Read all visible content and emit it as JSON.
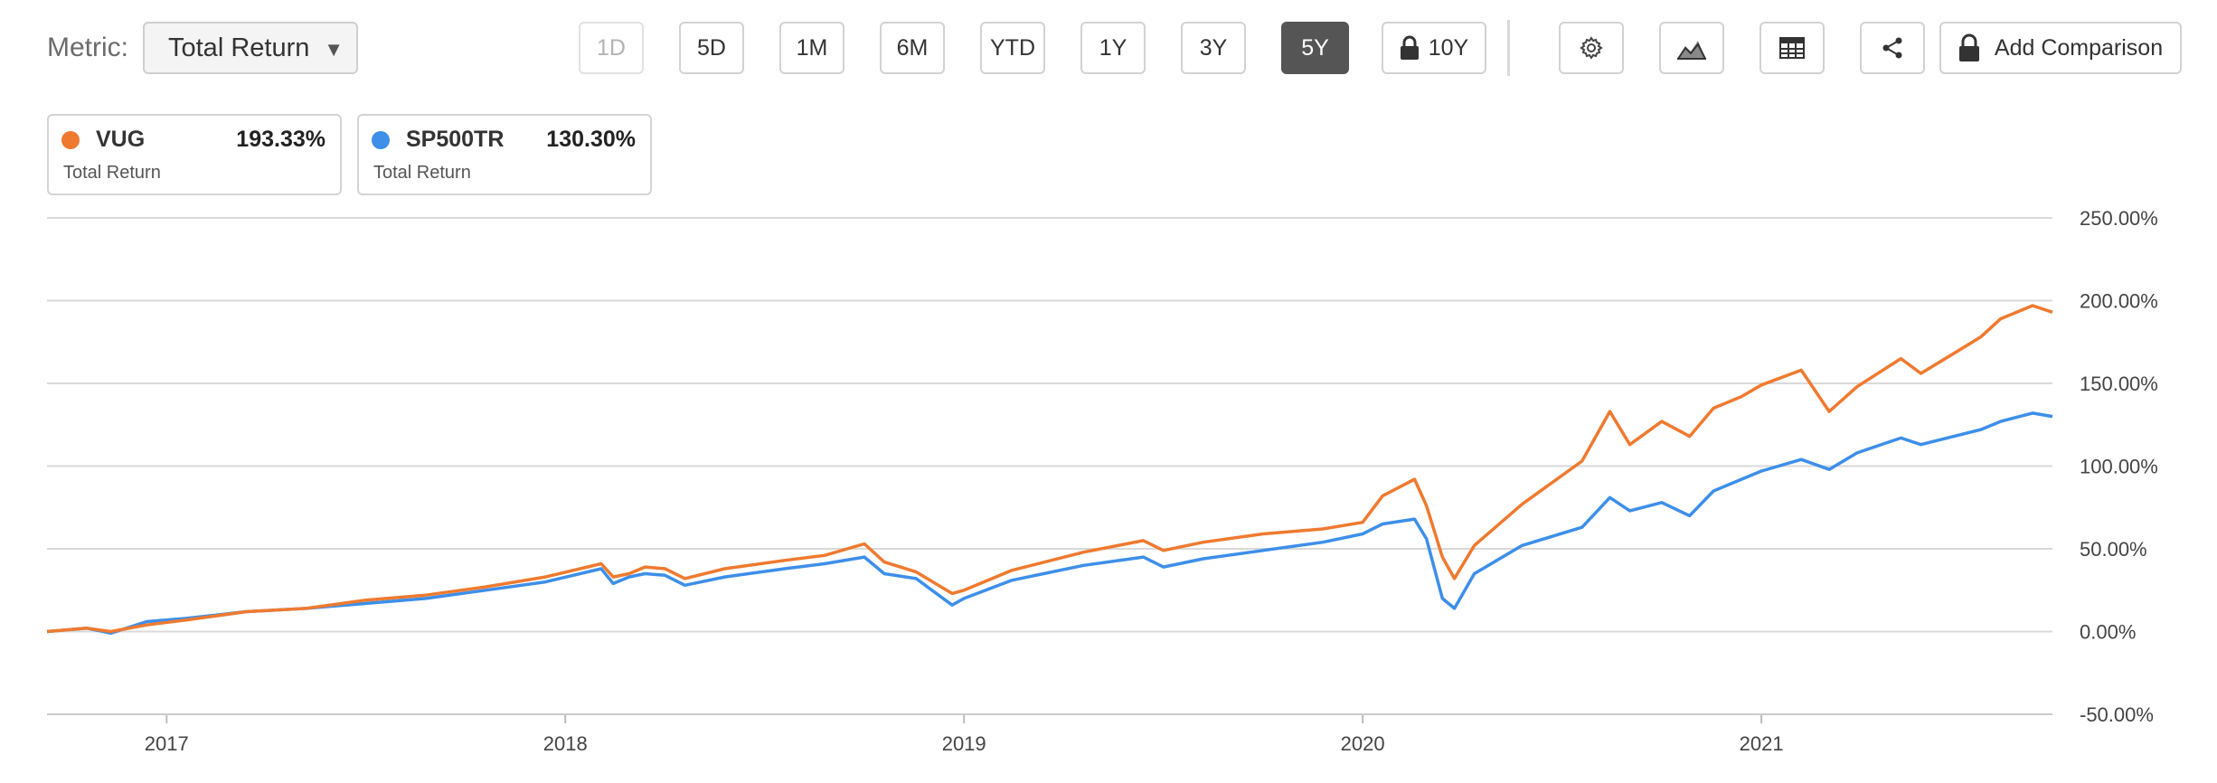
{
  "toolbar": {
    "metric_label": "Metric:",
    "metric_value": "Total Return",
    "ranges": [
      "1D",
      "5D",
      "1M",
      "6M",
      "YTD",
      "1Y",
      "3Y",
      "5Y",
      "10Y"
    ],
    "active_range": "5Y",
    "disabled_range": "1D",
    "locked_range": "10Y",
    "add_comparison_label": "Add Comparison",
    "icons": [
      "gear-icon",
      "chart-type-icon",
      "table-icon",
      "share-icon",
      "lock-icon"
    ]
  },
  "legend": [
    {
      "symbol": "VUG",
      "value": "193.33%",
      "metric": "Total Return",
      "color": "#ef7a2f"
    },
    {
      "symbol": "SP500TR",
      "value": "130.30%",
      "metric": "Total Return",
      "color": "#3d8fe8"
    }
  ],
  "chart_data": {
    "type": "line",
    "y_unit": "%",
    "ylim": [
      -50,
      250
    ],
    "yticks": [
      250,
      200,
      150,
      100,
      50,
      0,
      -50
    ],
    "ytick_labels": [
      "250.00%",
      "200.00%",
      "150.00%",
      "100.00%",
      "50.00%",
      "0.00%",
      "-50.00%"
    ],
    "xlim": [
      2016.7,
      2021.73
    ],
    "xticks": [
      2017,
      2018,
      2019,
      2020,
      2021
    ],
    "xtick_labels": [
      "2017",
      "2018",
      "2019",
      "2020",
      "2021"
    ],
    "grid": "horizontal",
    "series": [
      {
        "name": "VUG",
        "color": "#ef7a2f",
        "points": [
          [
            2016.7,
            0
          ],
          [
            2016.8,
            2
          ],
          [
            2016.86,
            0
          ],
          [
            2016.95,
            4
          ],
          [
            2017.05,
            7
          ],
          [
            2017.2,
            12
          ],
          [
            2017.35,
            14
          ],
          [
            2017.5,
            19
          ],
          [
            2017.65,
            22
          ],
          [
            2017.8,
            27
          ],
          [
            2017.95,
            33
          ],
          [
            2018.09,
            41
          ],
          [
            2018.12,
            33
          ],
          [
            2018.16,
            35
          ],
          [
            2018.2,
            39
          ],
          [
            2018.25,
            38
          ],
          [
            2018.3,
            32
          ],
          [
            2018.4,
            38
          ],
          [
            2018.55,
            43
          ],
          [
            2018.65,
            46
          ],
          [
            2018.75,
            53
          ],
          [
            2018.8,
            42
          ],
          [
            2018.88,
            36
          ],
          [
            2018.97,
            23
          ],
          [
            2019.0,
            25
          ],
          [
            2019.12,
            37
          ],
          [
            2019.3,
            48
          ],
          [
            2019.45,
            55
          ],
          [
            2019.5,
            49
          ],
          [
            2019.6,
            54
          ],
          [
            2019.75,
            59
          ],
          [
            2019.9,
            62
          ],
          [
            2020.0,
            66
          ],
          [
            2020.05,
            82
          ],
          [
            2020.13,
            92
          ],
          [
            2020.16,
            76
          ],
          [
            2020.2,
            45
          ],
          [
            2020.23,
            32
          ],
          [
            2020.28,
            52
          ],
          [
            2020.4,
            77
          ],
          [
            2020.55,
            103
          ],
          [
            2020.62,
            133
          ],
          [
            2020.67,
            113
          ],
          [
            2020.75,
            127
          ],
          [
            2020.82,
            118
          ],
          [
            2020.88,
            135
          ],
          [
            2020.95,
            142
          ],
          [
            2021.0,
            149
          ],
          [
            2021.1,
            158
          ],
          [
            2021.17,
            133
          ],
          [
            2021.24,
            148
          ],
          [
            2021.35,
            165
          ],
          [
            2021.4,
            156
          ],
          [
            2021.55,
            178
          ],
          [
            2021.6,
            189
          ],
          [
            2021.68,
            197
          ],
          [
            2021.73,
            193
          ]
        ]
      },
      {
        "name": "SP500TR",
        "color": "#3d8fe8",
        "points": [
          [
            2016.7,
            0
          ],
          [
            2016.8,
            2
          ],
          [
            2016.86,
            -1
          ],
          [
            2016.95,
            6
          ],
          [
            2017.05,
            8
          ],
          [
            2017.2,
            12
          ],
          [
            2017.35,
            14
          ],
          [
            2017.5,
            17
          ],
          [
            2017.65,
            20
          ],
          [
            2017.8,
            25
          ],
          [
            2017.95,
            30
          ],
          [
            2018.09,
            38
          ],
          [
            2018.12,
            29
          ],
          [
            2018.16,
            33
          ],
          [
            2018.2,
            35
          ],
          [
            2018.25,
            34
          ],
          [
            2018.3,
            28
          ],
          [
            2018.4,
            33
          ],
          [
            2018.55,
            38
          ],
          [
            2018.65,
            41
          ],
          [
            2018.75,
            45
          ],
          [
            2018.8,
            35
          ],
          [
            2018.88,
            32
          ],
          [
            2018.97,
            16
          ],
          [
            2019.0,
            20
          ],
          [
            2019.12,
            31
          ],
          [
            2019.3,
            40
          ],
          [
            2019.45,
            45
          ],
          [
            2019.5,
            39
          ],
          [
            2019.6,
            44
          ],
          [
            2019.75,
            49
          ],
          [
            2019.9,
            54
          ],
          [
            2020.0,
            59
          ],
          [
            2020.05,
            65
          ],
          [
            2020.13,
            68
          ],
          [
            2020.16,
            56
          ],
          [
            2020.2,
            20
          ],
          [
            2020.23,
            14
          ],
          [
            2020.28,
            35
          ],
          [
            2020.4,
            52
          ],
          [
            2020.55,
            63
          ],
          [
            2020.62,
            81
          ],
          [
            2020.67,
            73
          ],
          [
            2020.75,
            78
          ],
          [
            2020.82,
            70
          ],
          [
            2020.88,
            85
          ],
          [
            2020.95,
            92
          ],
          [
            2021.0,
            97
          ],
          [
            2021.1,
            104
          ],
          [
            2021.17,
            98
          ],
          [
            2021.24,
            108
          ],
          [
            2021.35,
            117
          ],
          [
            2021.4,
            113
          ],
          [
            2021.55,
            122
          ],
          [
            2021.6,
            127
          ],
          [
            2021.68,
            132
          ],
          [
            2021.73,
            130
          ]
        ]
      }
    ]
  }
}
